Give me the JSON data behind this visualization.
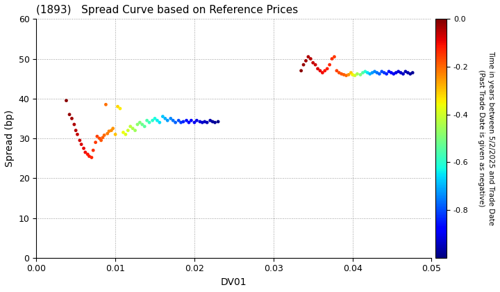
{
  "title": "(1893)   Spread Curve based on Reference Prices",
  "xlabel": "DV01",
  "ylabel": "Spread (bp)",
  "colorbar_label": "Time in years between 5/2/2025 and Trade Date\n(Past Trade Date is given as negative)",
  "xlim": [
    0.0,
    0.05
  ],
  "ylim": [
    0,
    60
  ],
  "xticks": [
    0.0,
    0.01,
    0.02,
    0.03,
    0.04,
    0.05
  ],
  "yticks": [
    0,
    10,
    20,
    30,
    40,
    50,
    60
  ],
  "clim": [
    -1.0,
    0.0
  ],
  "cticks": [
    0.0,
    -0.2,
    -0.4,
    -0.6,
    -0.8
  ],
  "background_color": "#ffffff",
  "grid_color": "#999999",
  "point_size": 12,
  "cluster1_dv01": [
    0.0038,
    0.0042,
    0.0045,
    0.0048,
    0.005,
    0.0052,
    0.0055,
    0.0057,
    0.006,
    0.0062,
    0.0065,
    0.0067,
    0.007,
    0.0072,
    0.0075,
    0.0077,
    0.008,
    0.0082,
    0.0084,
    0.0086,
    0.0088,
    0.009,
    0.0092,
    0.0095,
    0.0097,
    0.01,
    0.0103,
    0.0106,
    0.011,
    0.0113,
    0.0116,
    0.0119,
    0.0122,
    0.0125,
    0.0128,
    0.0131,
    0.0134,
    0.0137,
    0.014,
    0.0143,
    0.0147,
    0.015,
    0.0153,
    0.0156,
    0.016,
    0.0163,
    0.0166,
    0.017,
    0.0173,
    0.0176,
    0.018,
    0.0183,
    0.0186,
    0.019,
    0.0193,
    0.0196,
    0.02,
    0.0203,
    0.0207,
    0.021,
    0.0213,
    0.0216,
    0.022,
    0.0223,
    0.0226,
    0.023
  ],
  "cluster1_spread": [
    39.5,
    36.0,
    35.0,
    33.5,
    32.0,
    31.0,
    29.5,
    28.5,
    27.5,
    26.5,
    26.0,
    25.5,
    25.2,
    27.0,
    29.0,
    30.5,
    30.0,
    29.5,
    30.2,
    30.8,
    38.5,
    31.2,
    31.8,
    32.0,
    32.5,
    31.0,
    38.0,
    37.5,
    31.5,
    31.0,
    32.0,
    33.0,
    32.5,
    32.0,
    33.5,
    34.0,
    33.5,
    33.0,
    34.5,
    34.0,
    34.5,
    35.0,
    34.5,
    34.0,
    35.5,
    35.0,
    34.5,
    35.0,
    34.5,
    34.0,
    34.5,
    34.0,
    34.2,
    34.5,
    34.0,
    34.5,
    34.0,
    34.5,
    34.2,
    34.0,
    34.2,
    34.0,
    34.5,
    34.2,
    34.0,
    34.2
  ],
  "cluster1_color": [
    -0.01,
    -0.02,
    -0.03,
    -0.04,
    -0.05,
    -0.06,
    -0.07,
    -0.08,
    -0.09,
    -0.1,
    -0.11,
    -0.12,
    -0.13,
    -0.14,
    -0.15,
    -0.16,
    -0.17,
    -0.18,
    -0.19,
    -0.2,
    -0.21,
    -0.22,
    -0.23,
    -0.24,
    -0.25,
    -0.3,
    -0.32,
    -0.34,
    -0.36,
    -0.38,
    -0.4,
    -0.42,
    -0.44,
    -0.46,
    -0.48,
    -0.5,
    -0.52,
    -0.54,
    -0.56,
    -0.58,
    -0.6,
    -0.62,
    -0.64,
    -0.66,
    -0.68,
    -0.7,
    -0.72,
    -0.74,
    -0.76,
    -0.78,
    -0.8,
    -0.82,
    -0.84,
    -0.86,
    -0.88,
    -0.89,
    -0.9,
    -0.91,
    -0.92,
    -0.93,
    -0.94,
    -0.95,
    -0.96,
    -0.97,
    -0.98,
    -0.99
  ],
  "cluster2_dv01": [
    0.0335,
    0.0338,
    0.0341,
    0.0344,
    0.0347,
    0.035,
    0.0353,
    0.0356,
    0.0359,
    0.0362,
    0.0365,
    0.0368,
    0.0371,
    0.0374,
    0.0377,
    0.038,
    0.0383,
    0.0386,
    0.0389,
    0.0392,
    0.0395,
    0.0398,
    0.04,
    0.0403,
    0.0406,
    0.041,
    0.0413,
    0.0416,
    0.0419,
    0.0422,
    0.0425,
    0.0428,
    0.0431,
    0.0434,
    0.0437,
    0.044,
    0.0443,
    0.0446,
    0.0449,
    0.0452,
    0.0455,
    0.0458,
    0.0461,
    0.0464,
    0.0467,
    0.047,
    0.0473,
    0.0476
  ],
  "cluster2_spread": [
    47.0,
    48.5,
    49.5,
    50.5,
    50.0,
    49.0,
    48.5,
    47.5,
    47.0,
    46.5,
    47.0,
    47.5,
    48.5,
    50.0,
    50.5,
    47.0,
    46.5,
    46.2,
    46.0,
    45.8,
    46.0,
    46.5,
    46.0,
    45.8,
    46.2,
    46.0,
    46.5,
    46.8,
    46.5,
    46.2,
    46.5,
    46.8,
    46.5,
    46.2,
    46.8,
    46.5,
    46.2,
    46.8,
    46.5,
    46.2,
    46.5,
    46.8,
    46.5,
    46.2,
    46.8,
    46.5,
    46.2,
    46.5
  ],
  "cluster2_color": [
    -0.01,
    -0.02,
    -0.03,
    -0.04,
    -0.05,
    -0.06,
    -0.07,
    -0.08,
    -0.09,
    -0.1,
    -0.11,
    -0.12,
    -0.13,
    -0.14,
    -0.15,
    -0.16,
    -0.17,
    -0.18,
    -0.19,
    -0.2,
    -0.25,
    -0.3,
    -0.35,
    -0.4,
    -0.45,
    -0.5,
    -0.55,
    -0.6,
    -0.65,
    -0.7,
    -0.72,
    -0.74,
    -0.76,
    -0.78,
    -0.8,
    -0.82,
    -0.84,
    -0.86,
    -0.88,
    -0.9,
    -0.91,
    -0.92,
    -0.93,
    -0.94,
    -0.95,
    -0.96,
    -0.97,
    -0.98
  ]
}
